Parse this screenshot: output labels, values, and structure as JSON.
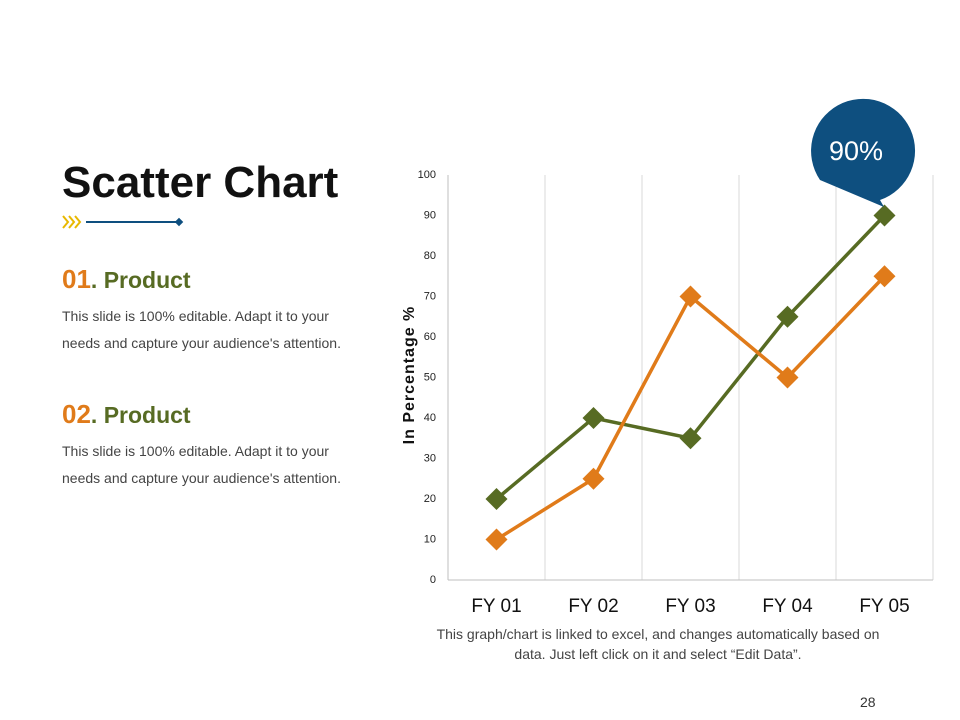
{
  "title": "Scatter Chart",
  "items": [
    {
      "number": "01",
      "label": ". Product",
      "text": "This slide is 100% editable. Adapt it to your needs and capture your audience's attention."
    },
    {
      "number": "02",
      "label": ". Product",
      "text": "This slide is 100% editable. Adapt it to your needs and capture your audience's attention."
    }
  ],
  "chart_data": {
    "type": "line",
    "y_label": "In Percentage %",
    "categories": [
      "FY 01",
      "FY 02",
      "FY 03",
      "FY 04",
      "FY 05"
    ],
    "series": [
      {
        "color": "#576b23",
        "values": [
          20,
          40,
          35,
          65,
          90
        ]
      },
      {
        "color": "#e07b1a",
        "values": [
          10,
          25,
          70,
          50,
          75
        ]
      }
    ],
    "ylim": [
      0,
      100
    ],
    "yticks": [
      0,
      10,
      20,
      30,
      40,
      50,
      60,
      70,
      80,
      90,
      100
    ],
    "xgrid": true,
    "annotation": "90%",
    "annotation_color": "#0e4f7f"
  },
  "footnote": "This graph/chart is linked to excel, and changes automatically based on data. Just left click on it and select “Edit Data”.",
  "page_number": "28"
}
